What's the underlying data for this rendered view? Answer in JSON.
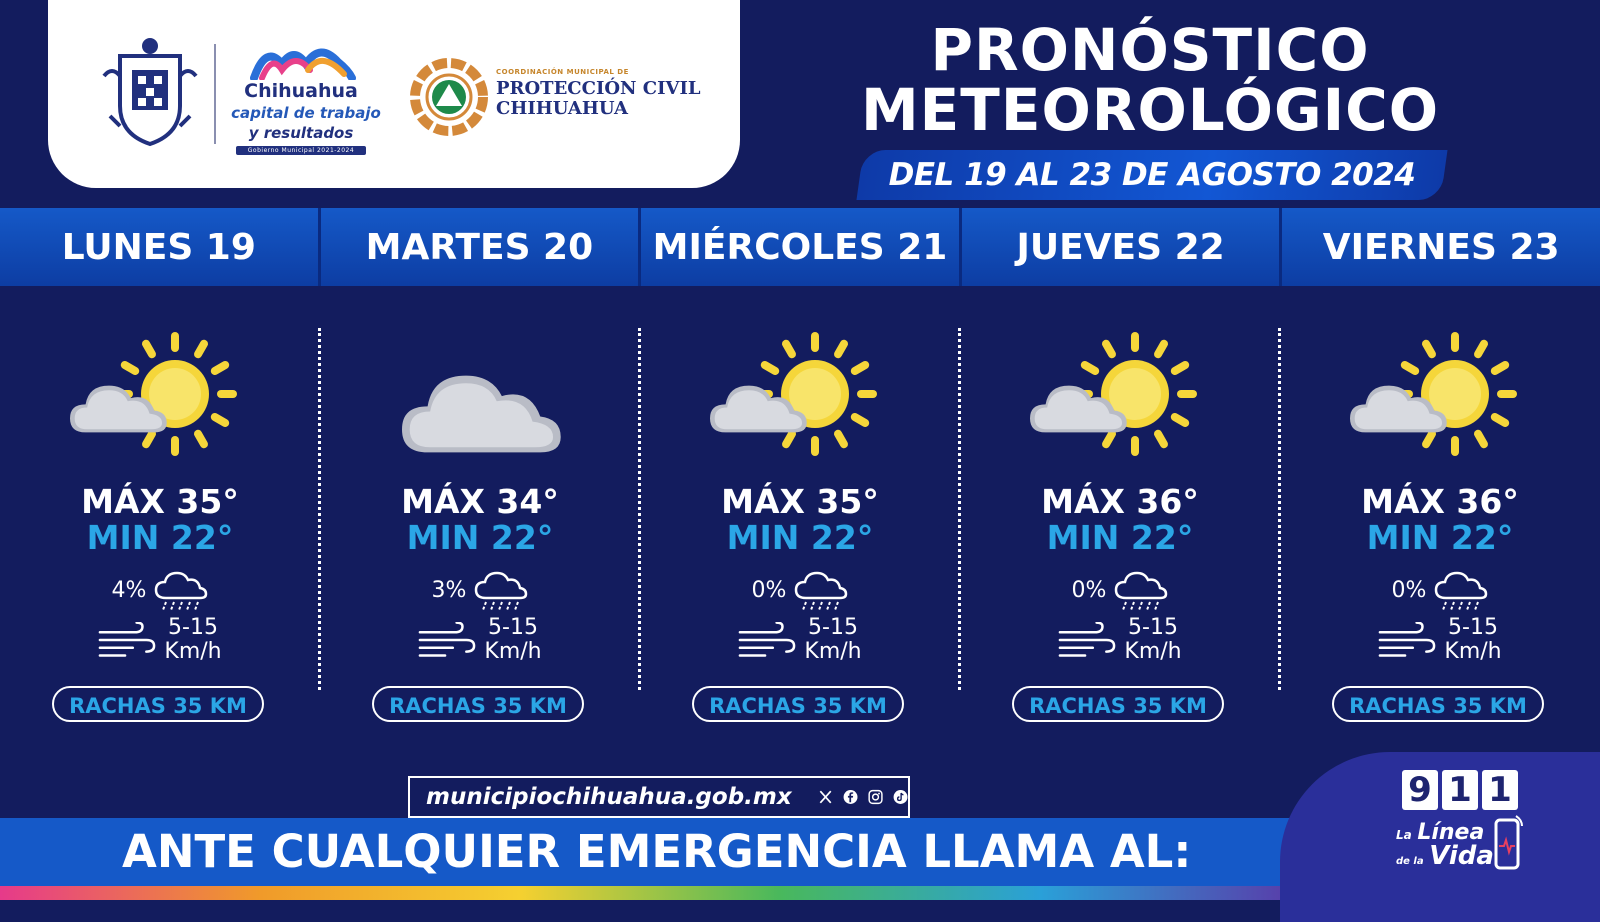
{
  "header": {
    "title_line1": "PRONÓSTICO",
    "title_line2": "METEOROLÓGICO",
    "date_range": "DEL 19 AL 23 DE AGOSTO 2024"
  },
  "logos": {
    "brand_line1": "Chihuahua",
    "brand_line2": "capital de trabajo",
    "brand_line3": "y resultados",
    "brand_line4": "Gobierno Municipal 2021-2024",
    "pc_small": "COORDINACIÓN MUNICIPAL DE",
    "pc_line1": "PROTECCIÓN CIVIL",
    "pc_line2": "CHIHUAHUA"
  },
  "days": [
    {
      "label": "LUNES 19",
      "icon": "partly-sunny-icon",
      "max": "MÁX 35°",
      "min": "MIN 22°",
      "rain": "4%",
      "wind_range": "5-15",
      "wind_unit": "Km/h",
      "gusts": "RACHAS 35 KM"
    },
    {
      "label": "MARTES 20",
      "icon": "cloud-icon",
      "max": "MÁX 34°",
      "min": "MIN 22°",
      "rain": "3%",
      "wind_range": "5-15",
      "wind_unit": "Km/h",
      "gusts": "RACHAS 35 KM"
    },
    {
      "label": "MIÉRCOLES 21",
      "icon": "partly-sunny-icon",
      "max": "MÁX 35°",
      "min": "MIN 22°",
      "rain": "0%",
      "wind_range": "5-15",
      "wind_unit": "Km/h",
      "gusts": "RACHAS 35 KM"
    },
    {
      "label": "JUEVES 22",
      "icon": "partly-sunny-icon",
      "max": "MÁX 36°",
      "min": "MIN 22°",
      "rain": "0%",
      "wind_range": "5-15",
      "wind_unit": "Km/h",
      "gusts": "RACHAS 35 KM"
    },
    {
      "label": "VIERNES 23",
      "icon": "partly-sunny-icon",
      "max": "MÁX 36°",
      "min": "MIN 22°",
      "rain": "0%",
      "wind_range": "5-15",
      "wind_unit": "Km/h",
      "gusts": "RACHAS 35 KM"
    }
  ],
  "footer": {
    "website": "municipiochihuahua.gob.mx",
    "emergency": "ANTE CUALQUIER EMERGENCIA LLAMA AL:",
    "digits": [
      "9",
      "1",
      "1"
    ],
    "lv_a": "La",
    "lv_b": "Línea",
    "lv_c": "de la",
    "lv_d": "Vida"
  },
  "colors": {
    "background": "#131c5e",
    "accent_blue": "#1559c8",
    "min_temp": "#2ba6e6",
    "sun": "#f5d63a"
  }
}
